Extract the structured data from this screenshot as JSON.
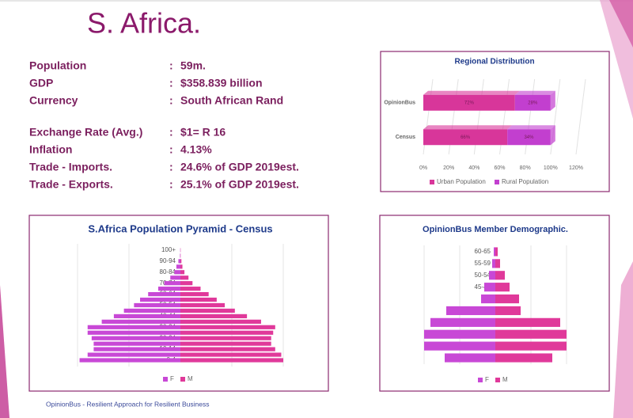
{
  "slide": {
    "title": "S. Africa.",
    "facts": [
      {
        "label": "Population",
        "separator": ":",
        "value": "59m."
      },
      {
        "label": "GDP",
        "separator": ":",
        "value": "$358.839 billion"
      },
      {
        "label": "Currency",
        "separator": ":",
        "value": "South African Rand"
      },
      {
        "label": "Exchange Rate (Avg.)",
        "separator": ":",
        "value": "$1= R 16"
      },
      {
        "label": "Inflation",
        "separator": ":",
        "value": "4.13%"
      },
      {
        "label": "Trade - Imports.",
        "separator": ":",
        "value": "24.6% of GDP 2019est."
      },
      {
        "label": "Trade - Exports.",
        "separator": ":",
        "value": "25.1% of GDP 2019est."
      }
    ],
    "footer": "OpinionBus - Resilient Approach for Resilient Business"
  },
  "chart_data": [
    {
      "type": "bar",
      "orientation": "horizontal",
      "stacked": true,
      "title": "Regional Distribution",
      "categories": [
        "OpinionBus",
        "Census"
      ],
      "series": [
        {
          "name": "Urban Population",
          "color": "#d8369a",
          "values": [
            72,
            66
          ],
          "value_labels": [
            "72%",
            "66%"
          ]
        },
        {
          "name": "Rural Population",
          "color": "#c23fcf",
          "values": [
            28,
            34
          ],
          "value_labels": [
            "28%",
            "34%"
          ]
        }
      ],
      "xlim": [
        0,
        120
      ],
      "xticks": [
        {
          "value": 0,
          "label": "0%"
        },
        {
          "value": 20,
          "label": "20%"
        },
        {
          "value": 40,
          "label": "40%"
        },
        {
          "value": 60,
          "label": "60%"
        },
        {
          "value": 80,
          "label": "80%"
        },
        {
          "value": 100,
          "label": "100%"
        },
        {
          "value": 120,
          "label": "120%"
        }
      ],
      "legend": "bottom"
    },
    {
      "type": "pyramid",
      "title": "S.Africa Population Pyramid - Census",
      "categories": [
        "0-4",
        null,
        "10-14",
        null,
        "20-24",
        null,
        "30-34",
        null,
        "40-44",
        null,
        "50-54",
        null,
        "60-64",
        null,
        "70-74",
        null,
        "80-84",
        null,
        "90-94",
        null,
        "100+"
      ],
      "series": [
        {
          "name": "F",
          "color": "#c848d6",
          "values": [
            5.0,
            4.6,
            4.3,
            4.3,
            4.4,
            4.6,
            4.6,
            3.9,
            3.3,
            2.8,
            2.3,
            2.0,
            1.6,
            1.1,
            0.8,
            0.5,
            0.3,
            0.2,
            0.1,
            0.02,
            0.01
          ]
        },
        {
          "name": "M",
          "color": "#e0399a",
          "values": [
            5.1,
            5.0,
            4.7,
            4.5,
            4.5,
            4.6,
            4.7,
            4.0,
            3.3,
            2.7,
            2.2,
            1.8,
            1.4,
            1.0,
            0.6,
            0.4,
            0.2,
            0.1,
            0.05,
            0.01,
            0.01
          ]
        }
      ],
      "legend": "bottom"
    },
    {
      "type": "pyramid",
      "title": "OpinionBus Member Demographic.",
      "categories": [
        null,
        null,
        null,
        null,
        null,
        null,
        "45-49",
        "50-54",
        "55-59",
        "60-65"
      ],
      "series": [
        {
          "name": "F",
          "color": "#c848d6",
          "values": [
            12.8,
            18,
            18,
            16.4,
            12.4,
            3.6,
            2.8,
            1.6,
            0.8,
            0.4
          ]
        },
        {
          "name": "M",
          "color": "#e0399a",
          "values": [
            14.4,
            18,
            18,
            16.4,
            6.4,
            6,
            3.6,
            2.4,
            1.2,
            0.6
          ]
        }
      ],
      "legend": "bottom"
    }
  ]
}
